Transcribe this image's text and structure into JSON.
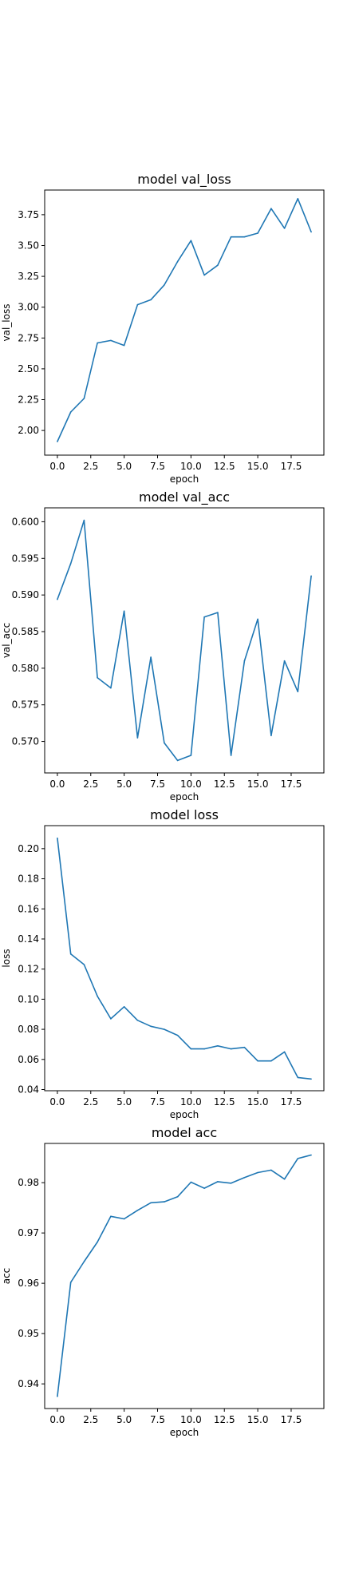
{
  "chart_data": [
    {
      "type": "line",
      "title": "model val_loss",
      "xlabel": "epoch",
      "ylabel": "val_loss",
      "xlim": [
        -0.95,
        19.95
      ],
      "ylim": [
        1.8,
        3.95
      ],
      "xticks": [
        0.0,
        2.5,
        5.0,
        7.5,
        10.0,
        12.5,
        15.0,
        17.5
      ],
      "xtick_labels": [
        "0.0",
        "2.5",
        "5.0",
        "7.5",
        "10.0",
        "12.5",
        "15.0",
        "17.5"
      ],
      "yticks": [
        2.0,
        2.25,
        2.5,
        2.75,
        3.0,
        3.25,
        3.5,
        3.75
      ],
      "ytick_labels": [
        "2.00",
        "2.25",
        "2.50",
        "2.75",
        "3.00",
        "3.25",
        "3.50",
        "3.75"
      ],
      "grid": false,
      "color": "#1f77b4",
      "x": [
        0,
        1,
        2,
        3,
        4,
        5,
        6,
        7,
        8,
        9,
        10,
        11,
        12,
        13,
        14,
        15,
        16,
        17,
        18,
        19
      ],
      "y": [
        1.91,
        2.15,
        2.26,
        2.71,
        2.73,
        2.69,
        3.02,
        3.06,
        3.18,
        3.37,
        3.54,
        3.26,
        3.34,
        3.57,
        3.57,
        3.6,
        3.8,
        3.64,
        3.88,
        3.61
      ]
    },
    {
      "type": "line",
      "title": "model val_acc",
      "xlabel": "epoch",
      "ylabel": "val_acc",
      "xlim": [
        -0.95,
        19.95
      ],
      "ylim": [
        0.5657,
        0.6019
      ],
      "xticks": [
        0.0,
        2.5,
        5.0,
        7.5,
        10.0,
        12.5,
        15.0,
        17.5
      ],
      "xtick_labels": [
        "0.0",
        "2.5",
        "5.0",
        "7.5",
        "10.0",
        "12.5",
        "15.0",
        "17.5"
      ],
      "yticks": [
        0.57,
        0.575,
        0.58,
        0.585,
        0.59,
        0.595,
        0.6
      ],
      "ytick_labels": [
        "0.570",
        "0.575",
        "0.580",
        "0.585",
        "0.590",
        "0.595",
        "0.600"
      ],
      "grid": false,
      "color": "#1f77b4",
      "x": [
        0,
        1,
        2,
        3,
        4,
        5,
        6,
        7,
        8,
        9,
        10,
        11,
        12,
        13,
        14,
        15,
        16,
        17,
        18,
        19
      ],
      "y": [
        0.5894,
        0.5943,
        0.6002,
        0.5787,
        0.5773,
        0.5878,
        0.5705,
        0.5815,
        0.5698,
        0.5674,
        0.5681,
        0.587,
        0.5876,
        0.5681,
        0.581,
        0.5867,
        0.5708,
        0.581,
        0.5768,
        0.5926
      ]
    },
    {
      "type": "line",
      "title": "model loss",
      "xlabel": "epoch",
      "ylabel": "loss",
      "xlim": [
        -0.95,
        19.95
      ],
      "ylim": [
        0.0392,
        0.2153
      ],
      "xticks": [
        0.0,
        2.5,
        5.0,
        7.5,
        10.0,
        12.5,
        15.0,
        17.5
      ],
      "xtick_labels": [
        "0.0",
        "2.5",
        "5.0",
        "7.5",
        "10.0",
        "12.5",
        "15.0",
        "17.5"
      ],
      "yticks": [
        0.04,
        0.06,
        0.08,
        0.1,
        0.12,
        0.14,
        0.16,
        0.18,
        0.2
      ],
      "ytick_labels": [
        "0.04",
        "0.06",
        "0.08",
        "0.10",
        "0.12",
        "0.14",
        "0.16",
        "0.18",
        "0.20"
      ],
      "grid": false,
      "color": "#1f77b4",
      "x": [
        0,
        1,
        2,
        3,
        4,
        5,
        6,
        7,
        8,
        9,
        10,
        11,
        12,
        13,
        14,
        15,
        16,
        17,
        18,
        19
      ],
      "y": [
        0.207,
        0.13,
        0.123,
        0.102,
        0.087,
        0.095,
        0.086,
        0.082,
        0.08,
        0.076,
        0.067,
        0.067,
        0.069,
        0.067,
        0.068,
        0.059,
        0.059,
        0.065,
        0.048,
        0.047
      ]
    },
    {
      "type": "line",
      "title": "model acc",
      "xlabel": "epoch",
      "ylabel": "acc",
      "xlim": [
        -0.95,
        19.95
      ],
      "ylim": [
        0.9351,
        0.9878
      ],
      "xticks": [
        0.0,
        2.5,
        5.0,
        7.5,
        10.0,
        12.5,
        15.0,
        17.5
      ],
      "xtick_labels": [
        "0.0",
        "2.5",
        "5.0",
        "7.5",
        "10.0",
        "12.5",
        "15.0",
        "17.5"
      ],
      "yticks": [
        0.94,
        0.95,
        0.96,
        0.97,
        0.98
      ],
      "ytick_labels": [
        "0.94",
        "0.95",
        "0.96",
        "0.97",
        "0.98"
      ],
      "grid": false,
      "color": "#1f77b4",
      "x": [
        0,
        1,
        2,
        3,
        4,
        5,
        6,
        7,
        8,
        9,
        10,
        11,
        12,
        13,
        14,
        15,
        16,
        17,
        18,
        19
      ],
      "y": [
        0.9375,
        0.9602,
        0.9643,
        0.9682,
        0.9733,
        0.9728,
        0.9745,
        0.976,
        0.9762,
        0.9772,
        0.9801,
        0.9789,
        0.9802,
        0.9799,
        0.981,
        0.982,
        0.9825,
        0.9807,
        0.9848,
        0.9855
      ]
    }
  ]
}
